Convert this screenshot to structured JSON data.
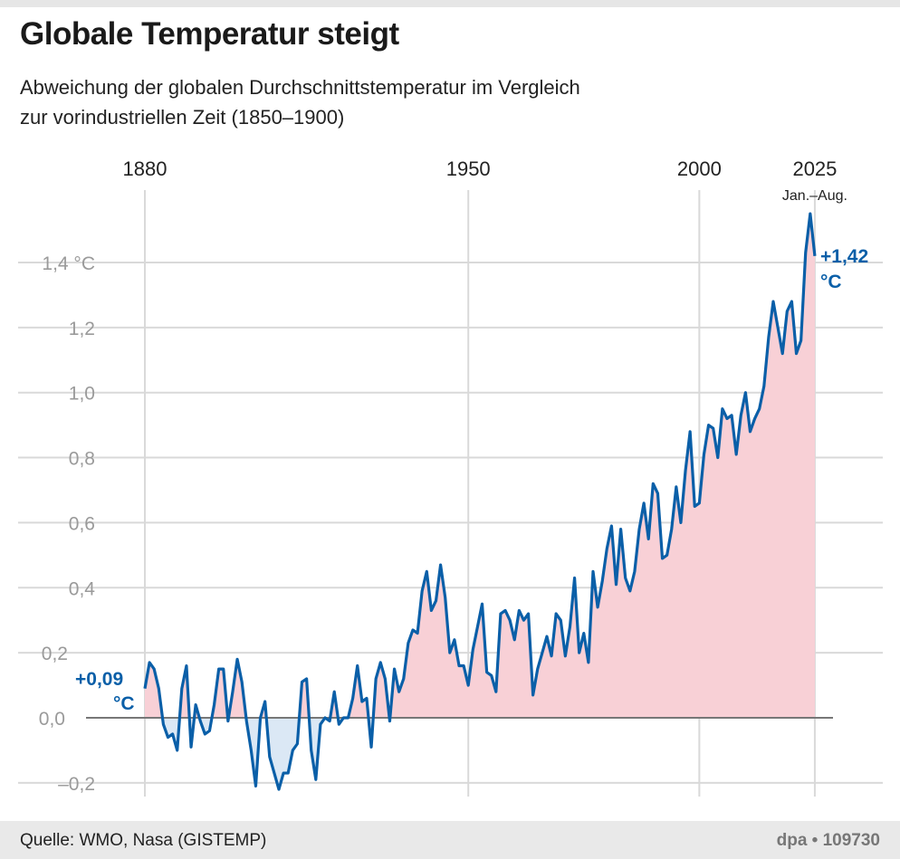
{
  "title": "Globale Temperatur steigt",
  "subtitle_line1": "Abweichung der globalen Durchschnittstemperatur im Vergleich",
  "subtitle_line2": "zur vorindustriellen Zeit (1850–1900)",
  "footer": {
    "source": "Quelle: WMO, Nasa (GISTEMP)",
    "credit": "dpa • 109730"
  },
  "colors": {
    "line": "#0a5fa8",
    "above_fill": "#f8d0d6",
    "below_fill": "#dbe8f5",
    "grid": "#d9d9d9",
    "tick_label": "#9a9a9a",
    "annotation": "#0a5fa8"
  },
  "chart_data": {
    "type": "area",
    "title": "Globale Temperatur steigt",
    "x_ticks": [
      {
        "value": 1880,
        "label": "1880"
      },
      {
        "value": 1950,
        "label": "1950"
      },
      {
        "value": 2000,
        "label": "2000"
      },
      {
        "value": 2025,
        "label": "2025"
      }
    ],
    "x_tick_note": "Jan.–Aug.",
    "y_ticks": [
      {
        "value": -0.2,
        "label": "–0,2"
      },
      {
        "value": 0.0,
        "label": "0,0"
      },
      {
        "value": 0.2,
        "label": "0,2"
      },
      {
        "value": 0.4,
        "label": "0,4"
      },
      {
        "value": 0.6,
        "label": "0,6"
      },
      {
        "value": 0.8,
        "label": "0,8"
      },
      {
        "value": 1.0,
        "label": "1,0"
      },
      {
        "value": 1.2,
        "label": "1,2"
      },
      {
        "value": 1.4,
        "label": "1,4 °C"
      }
    ],
    "xlim": [
      1880,
      2025
    ],
    "ylim": [
      -0.2,
      1.55
    ],
    "grid": true,
    "x_start": 1880,
    "values": [
      0.09,
      0.17,
      0.15,
      0.09,
      -0.02,
      -0.06,
      -0.05,
      -0.1,
      0.09,
      0.16,
      -0.09,
      0.04,
      -0.01,
      -0.05,
      -0.04,
      0.04,
      0.15,
      0.15,
      -0.01,
      0.08,
      0.18,
      0.11,
      -0.01,
      -0.1,
      -0.21,
      0.0,
      0.05,
      -0.12,
      -0.17,
      -0.22,
      -0.17,
      -0.17,
      -0.1,
      -0.08,
      0.11,
      0.12,
      -0.1,
      -0.19,
      -0.02,
      0.0,
      -0.01,
      0.08,
      -0.02,
      0.0,
      0.0,
      0.06,
      0.16,
      0.05,
      0.06,
      -0.09,
      0.12,
      0.17,
      0.12,
      -0.01,
      0.15,
      0.08,
      0.12,
      0.23,
      0.27,
      0.26,
      0.39,
      0.45,
      0.33,
      0.36,
      0.47,
      0.37,
      0.2,
      0.24,
      0.16,
      0.16,
      0.1,
      0.21,
      0.28,
      0.35,
      0.14,
      0.13,
      0.08,
      0.32,
      0.33,
      0.3,
      0.24,
      0.33,
      0.3,
      0.32,
      0.07,
      0.15,
      0.2,
      0.25,
      0.19,
      0.32,
      0.3,
      0.19,
      0.28,
      0.43,
      0.2,
      0.26,
      0.17,
      0.45,
      0.34,
      0.42,
      0.52,
      0.59,
      0.41,
      0.58,
      0.43,
      0.39,
      0.45,
      0.58,
      0.66,
      0.55,
      0.72,
      0.69,
      0.49,
      0.5,
      0.58,
      0.71,
      0.6,
      0.76,
      0.88,
      0.65,
      0.66,
      0.81,
      0.9,
      0.89,
      0.8,
      0.95,
      0.92,
      0.93,
      0.81,
      0.93,
      1.0,
      0.88,
      0.92,
      0.95,
      1.02,
      1.17,
      1.28,
      1.2,
      1.12,
      1.25,
      1.28,
      1.12,
      1.16,
      1.43,
      1.55,
      1.42
    ],
    "annotations": {
      "start_value": "+0,09",
      "end_value": "+1,42",
      "unit": "°C"
    }
  }
}
